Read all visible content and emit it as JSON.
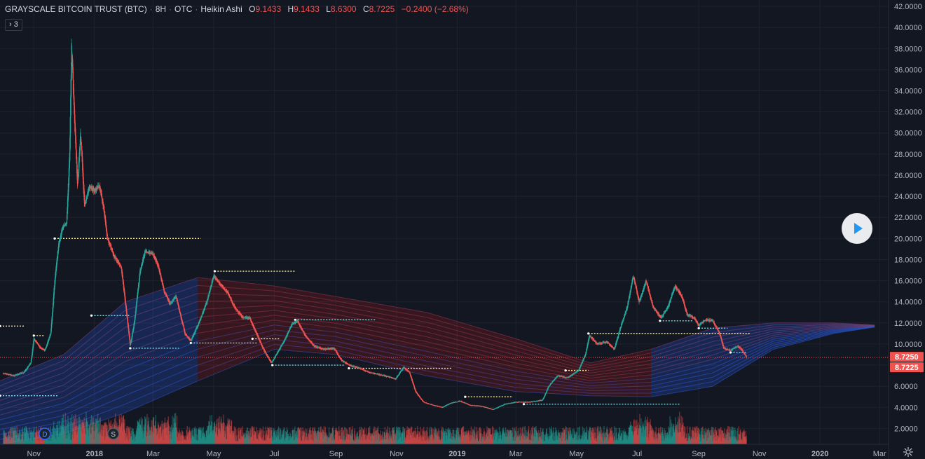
{
  "legend": {
    "symbol": "GRAYSCALE BITCOIN TRUST (BTC)",
    "interval": "8H",
    "exchange": "OTC",
    "chart_style": "Heikin Ashi",
    "open_label": "O",
    "open_value": "9.1433",
    "high_label": "H",
    "high_value": "9.1433",
    "low_label": "L",
    "low_value": "8.6300",
    "close_label": "C",
    "close_value": "8.7225",
    "change": "−0.2400 (−2.68%)"
  },
  "indicators_toggle": "3",
  "colors": {
    "background": "#131722",
    "up": "#26a69a",
    "down": "#ef5350",
    "grid": "#1e222d",
    "axis_text": "#b2b5be",
    "price_line": "#ef5350",
    "ribbon_blue": "#2962ff",
    "ribbon_red": "#b71c1c",
    "level_yellow": "#ffeb99",
    "level_cyan": "#7ed6df"
  },
  "chart_data": {
    "type": "candlestick",
    "scale": "linear",
    "ylim": [
      0.5,
      42.6
    ],
    "y_ticks": [
      "2.0000",
      "4.0000",
      "6.0000",
      "8.0000",
      "10.0000",
      "12.0000",
      "14.0000",
      "16.0000",
      "18.0000",
      "20.0000",
      "22.0000",
      "24.0000",
      "26.0000",
      "28.0000",
      "30.0000",
      "32.0000",
      "34.0000",
      "36.0000",
      "38.0000",
      "40.0000",
      "42.0000"
    ],
    "x_labels": [
      "Nov",
      "2018",
      "Mar",
      "May",
      "Jul",
      "Sep",
      "Nov",
      "2019",
      "Mar",
      "May",
      "Jul",
      "Sep",
      "Nov",
      "2020",
      "Mar"
    ],
    "last_price_labels": [
      "8.7250",
      "8.7225"
    ],
    "price_path": [
      [
        "2017-10-01",
        7.2
      ],
      [
        "2017-10-12",
        7.0
      ],
      [
        "2017-10-22",
        7.3
      ],
      [
        "2017-10-29",
        8.2
      ],
      [
        "2017-11-01",
        10.5
      ],
      [
        "2017-11-08",
        9.6
      ],
      [
        "2017-11-12",
        9.4
      ],
      [
        "2017-11-18",
        11.0
      ],
      [
        "2017-11-22",
        16.0
      ],
      [
        "2017-11-26",
        19.5
      ],
      [
        "2017-11-30",
        21.0
      ],
      [
        "2017-12-04",
        21.5
      ],
      [
        "2017-12-07",
        28.0
      ],
      [
        "2017-12-09",
        38.5
      ],
      [
        "2017-12-12",
        31.0
      ],
      [
        "2017-12-15",
        25.0
      ],
      [
        "2017-12-18",
        30.0
      ],
      [
        "2017-12-22",
        23.0
      ],
      [
        "2017-12-27",
        25.0
      ],
      [
        "2018-01-01",
        24.5
      ],
      [
        "2018-01-06",
        25.0
      ],
      [
        "2018-01-10",
        23.0
      ],
      [
        "2018-01-14",
        20.0
      ],
      [
        "2018-01-20",
        18.5
      ],
      [
        "2018-01-28",
        17.2
      ],
      [
        "2018-02-01",
        14.0
      ],
      [
        "2018-02-06",
        9.8
      ],
      [
        "2018-02-10",
        12.0
      ],
      [
        "2018-02-16",
        17.0
      ],
      [
        "2018-02-21",
        18.8
      ],
      [
        "2018-03-01",
        18.5
      ],
      [
        "2018-03-06",
        17.5
      ],
      [
        "2018-03-12",
        15.0
      ],
      [
        "2018-03-18",
        13.8
      ],
      [
        "2018-03-24",
        14.5
      ],
      [
        "2018-04-02",
        11.0
      ],
      [
        "2018-04-08",
        10.3
      ],
      [
        "2018-04-16",
        12.0
      ],
      [
        "2018-04-24",
        14.0
      ],
      [
        "2018-05-01",
        16.5
      ],
      [
        "2018-05-06",
        15.8
      ],
      [
        "2018-05-14",
        15.0
      ],
      [
        "2018-05-22",
        13.5
      ],
      [
        "2018-05-30",
        12.5
      ],
      [
        "2018-06-06",
        12.5
      ],
      [
        "2018-06-13",
        11.0
      ],
      [
        "2018-06-20",
        9.5
      ],
      [
        "2018-06-28",
        8.2
      ],
      [
        "2018-07-06",
        9.5
      ],
      [
        "2018-07-12",
        10.5
      ],
      [
        "2018-07-18",
        11.8
      ],
      [
        "2018-07-24",
        12.2
      ],
      [
        "2018-08-01",
        10.8
      ],
      [
        "2018-08-10",
        9.8
      ],
      [
        "2018-08-20",
        9.5
      ],
      [
        "2018-08-30",
        9.6
      ],
      [
        "2018-09-06",
        8.5
      ],
      [
        "2018-09-14",
        8.0
      ],
      [
        "2018-09-25",
        7.7
      ],
      [
        "2018-10-05",
        7.3
      ],
      [
        "2018-10-20",
        7.0
      ],
      [
        "2018-10-31",
        6.7
      ],
      [
        "2018-11-08",
        7.8
      ],
      [
        "2018-11-14",
        7.3
      ],
      [
        "2018-11-20",
        5.5
      ],
      [
        "2018-11-28",
        4.5
      ],
      [
        "2018-12-08",
        4.2
      ],
      [
        "2018-12-17",
        4.0
      ],
      [
        "2018-12-25",
        4.4
      ],
      [
        "2019-01-04",
        4.6
      ],
      [
        "2019-01-14",
        4.2
      ],
      [
        "2019-01-26",
        4.1
      ],
      [
        "2019-02-06",
        3.8
      ],
      [
        "2019-02-18",
        4.3
      ],
      [
        "2019-03-01",
        4.5
      ],
      [
        "2019-03-15",
        4.5
      ],
      [
        "2019-03-28",
        4.7
      ],
      [
        "2019-04-03",
        6.0
      ],
      [
        "2019-04-12",
        7.0
      ],
      [
        "2019-04-22",
        6.8
      ],
      [
        "2019-05-03",
        7.5
      ],
      [
        "2019-05-10",
        9.0
      ],
      [
        "2019-05-14",
        10.8
      ],
      [
        "2019-05-22",
        10.0
      ],
      [
        "2019-06-01",
        10.2
      ],
      [
        "2019-06-08",
        9.5
      ],
      [
        "2019-06-14",
        11.5
      ],
      [
        "2019-06-21",
        13.5
      ],
      [
        "2019-06-27",
        16.5
      ],
      [
        "2019-07-03",
        14.0
      ],
      [
        "2019-07-10",
        16.0
      ],
      [
        "2019-07-17",
        13.5
      ],
      [
        "2019-07-25",
        12.5
      ],
      [
        "2019-08-01",
        13.5
      ],
      [
        "2019-08-08",
        15.5
      ],
      [
        "2019-08-15",
        14.5
      ],
      [
        "2019-08-20",
        12.8
      ],
      [
        "2019-08-27",
        12.5
      ],
      [
        "2019-09-01",
        11.8
      ],
      [
        "2019-09-08",
        12.3
      ],
      [
        "2019-09-15",
        12.2
      ],
      [
        "2019-09-22",
        11.0
      ],
      [
        "2019-09-26",
        9.6
      ],
      [
        "2019-10-03",
        9.4
      ],
      [
        "2019-10-10",
        9.8
      ],
      [
        "2019-10-14",
        9.5
      ],
      [
        "2019-10-19",
        8.72
      ]
    ],
    "levels": [
      {
        "value": 11.7,
        "from": "2017-09-28",
        "to": "2017-10-23",
        "color": "yellow"
      },
      {
        "value": 10.8,
        "from": "2017-11-01",
        "to": "2017-11-12",
        "color": "yellow"
      },
      {
        "value": 20.0,
        "from": "2017-11-22",
        "to": "2018-04-18",
        "color": "yellow"
      },
      {
        "value": 12.7,
        "from": "2017-12-29",
        "to": "2018-02-05",
        "color": "cyan"
      },
      {
        "value": 9.6,
        "from": "2018-02-06",
        "to": "2018-03-27",
        "color": "cyan"
      },
      {
        "value": 10.1,
        "from": "2018-04-08",
        "to": "2018-06-14",
        "color": "cyan"
      },
      {
        "value": 16.9,
        "from": "2018-05-02",
        "to": "2018-07-22",
        "color": "yellow"
      },
      {
        "value": 12.3,
        "from": "2018-07-22",
        "to": "2018-10-11",
        "color": "cyan"
      },
      {
        "value": 10.5,
        "from": "2018-06-09",
        "to": "2018-07-06",
        "color": "yellow"
      },
      {
        "value": 8.0,
        "from": "2018-06-29",
        "to": "2018-09-09",
        "color": "cyan"
      },
      {
        "value": 7.7,
        "from": "2018-09-14",
        "to": "2018-12-26",
        "color": "yellow"
      },
      {
        "value": 5.0,
        "from": "2019-01-09",
        "to": "2019-02-26",
        "color": "yellow"
      },
      {
        "value": 4.3,
        "from": "2019-03-09",
        "to": "2019-08-14",
        "color": "cyan"
      },
      {
        "value": 7.5,
        "from": "2019-04-20",
        "to": "2019-05-13",
        "color": "yellow"
      },
      {
        "value": 11.0,
        "from": "2019-05-13",
        "to": "2019-10-23",
        "color": "yellow"
      },
      {
        "value": 12.2,
        "from": "2019-07-24",
        "to": "2019-08-26",
        "color": "cyan"
      },
      {
        "value": 11.5,
        "from": "2019-09-01",
        "to": "2019-09-30",
        "color": "cyan"
      },
      {
        "value": 9.2,
        "from": "2019-10-03",
        "to": "2019-10-19",
        "color": "cyan"
      },
      {
        "value": 5.1,
        "from": "2017-09-28",
        "to": "2017-11-26",
        "color": "cyan"
      }
    ],
    "ribbon": [
      {
        "date": "2017-09-28",
        "top": 6.5,
        "bottom": 0.5,
        "tone": "blue"
      },
      {
        "date": "2017-12-01",
        "top": 9.0,
        "bottom": 1.5,
        "tone": "blue"
      },
      {
        "date": "2018-02-01",
        "top": 14.0,
        "bottom": 3.5,
        "tone": "blue"
      },
      {
        "date": "2018-04-15",
        "top": 16.3,
        "bottom": 6.5,
        "tone": "red"
      },
      {
        "date": "2018-07-01",
        "top": 15.5,
        "bottom": 9.5,
        "tone": "red"
      },
      {
        "date": "2018-09-01",
        "top": 14.5,
        "bottom": 9.0,
        "tone": "red"
      },
      {
        "date": "2018-12-01",
        "top": 13.0,
        "bottom": 7.0,
        "tone": "red"
      },
      {
        "date": "2019-03-01",
        "top": 10.5,
        "bottom": 5.5,
        "tone": "red"
      },
      {
        "date": "2019-05-15",
        "top": 8.2,
        "bottom": 5.1,
        "tone": "red"
      },
      {
        "date": "2019-07-15",
        "top": 9.5,
        "bottom": 5.0,
        "tone": "blue"
      },
      {
        "date": "2019-09-15",
        "top": 11.5,
        "bottom": 6.0,
        "tone": "blue"
      },
      {
        "date": "2019-11-15",
        "top": 12.0,
        "bottom": 9.5,
        "tone": "blue"
      },
      {
        "date": "2020-01-15",
        "top": 12.0,
        "bottom": 11.0,
        "tone": "blue"
      },
      {
        "date": "2020-02-25",
        "top": 11.8,
        "bottom": 11.6,
        "tone": "blue"
      }
    ],
    "grid": true,
    "volume": true,
    "event_markers": [
      {
        "date": "2017-11-12",
        "label": "D"
      },
      {
        "date": "2018-01-20",
        "label": "S"
      }
    ]
  }
}
